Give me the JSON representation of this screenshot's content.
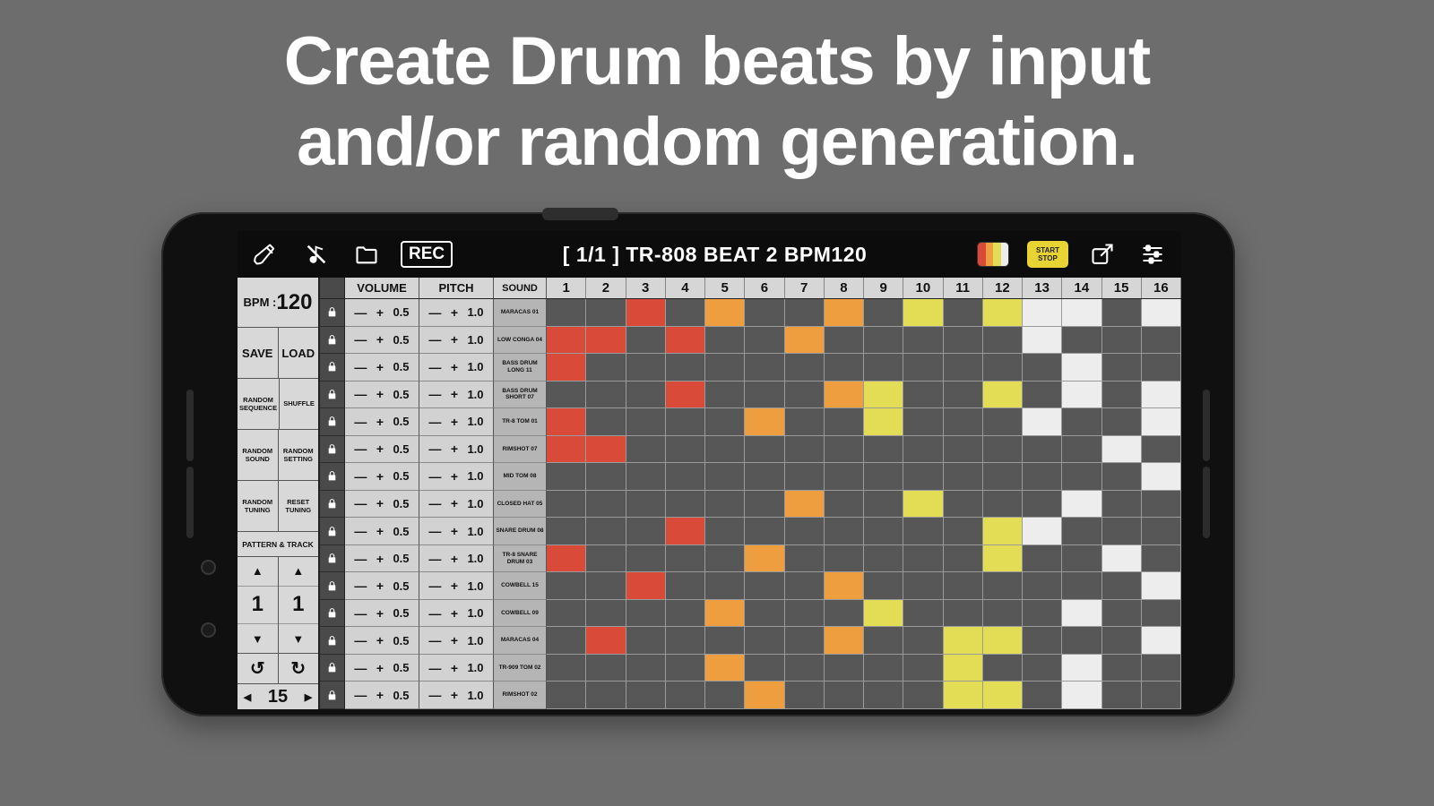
{
  "heading": {
    "line1": "Create Drum beats by input",
    "line2": "and/or random generation."
  },
  "toolbar": {
    "rec_label": "REC",
    "title": "[ 1/1 ] TR-808 BEAT 2 BPM120",
    "start_label": "START",
    "stop_label": "STOP"
  },
  "left_panel": {
    "bpm_label": "BPM :",
    "bpm_value": "120",
    "save": "SAVE",
    "load": "LOAD",
    "random_sequence": "RANDOM SEQUENCE",
    "shuffle": "SHUFFLE",
    "random_sound": "RANDOM SOUND",
    "random_setting": "RANDOM SETTING",
    "random_tuning": "RANDOM TUNING",
    "reset_tuning": "RESET TUNING",
    "pattern_track": "PATTERN & TRACK",
    "pattern_value": "1",
    "track_value": "1",
    "arrow_up": "▲",
    "arrow_down": "▼",
    "undo_icon": "↺",
    "loop_icon": "↻",
    "page_prev": "◀",
    "page_value": "15",
    "page_next": "▶"
  },
  "sequencer": {
    "column_headers": {
      "volume": "VOLUME",
      "pitch": "PITCH",
      "sound": "SOUND"
    },
    "step_numbers": [
      1,
      2,
      3,
      4,
      5,
      6,
      7,
      8,
      9,
      10,
      11,
      12,
      13,
      14,
      15,
      16
    ],
    "minus": "—",
    "plus": "+",
    "colors": {
      "red": "#d94a38",
      "orange": "#ee9d3f",
      "yellow": "#e2dd55",
      "white": "#ededed",
      "empty": "#575757",
      "start_stop_accent": "#e8d334"
    },
    "color_rule": "active steps 1-4 red, 5-8 orange, 9-12 yellow, 13-16 white",
    "rows": [
      {
        "sound": "MARACAS 01",
        "volume": "0.5",
        "pitch": "1.0",
        "active_steps": [
          3,
          5,
          8,
          10,
          12,
          13,
          14,
          16
        ]
      },
      {
        "sound": "LOW CONGA 04",
        "volume": "0.5",
        "pitch": "1.0",
        "active_steps": [
          1,
          2,
          4,
          7,
          13
        ]
      },
      {
        "sound": "BASS DRUM LONG 11",
        "volume": "0.5",
        "pitch": "1.0",
        "active_steps": [
          1,
          14
        ]
      },
      {
        "sound": "BASS DRUM SHORT 07",
        "volume": "0.5",
        "pitch": "1.0",
        "active_steps": [
          4,
          8,
          9,
          12,
          14,
          16
        ]
      },
      {
        "sound": "TR-8 TOM 01",
        "volume": "0.5",
        "pitch": "1.0",
        "active_steps": [
          1,
          6,
          9,
          13,
          16
        ]
      },
      {
        "sound": "RIMSHOT 07",
        "volume": "0.5",
        "pitch": "1.0",
        "active_steps": [
          1,
          2,
          15
        ]
      },
      {
        "sound": "MID TOM 08",
        "volume": "0.5",
        "pitch": "1.0",
        "active_steps": [
          16
        ]
      },
      {
        "sound": "CLOSED HAT 05",
        "volume": "0.5",
        "pitch": "1.0",
        "active_steps": [
          7,
          10,
          14
        ]
      },
      {
        "sound": "SNARE DRUM 08",
        "volume": "0.5",
        "pitch": "1.0",
        "active_steps": [
          4,
          12,
          13
        ]
      },
      {
        "sound": "TR-8 SNARE DRUM 03",
        "volume": "0.5",
        "pitch": "1.0",
        "active_steps": [
          1,
          6,
          12,
          15
        ]
      },
      {
        "sound": "COWBELL 15",
        "volume": "0.5",
        "pitch": "1.0",
        "active_steps": [
          3,
          8,
          16
        ]
      },
      {
        "sound": "COWBELL 09",
        "volume": "0.5",
        "pitch": "1.0",
        "active_steps": [
          5,
          9,
          14
        ]
      },
      {
        "sound": "MARACAS 04",
        "volume": "0.5",
        "pitch": "1.0",
        "active_steps": [
          2,
          8,
          11,
          12,
          16
        ]
      },
      {
        "sound": "TR-909 TOM 02",
        "volume": "0.5",
        "pitch": "1.0",
        "active_steps": [
          5,
          11,
          14
        ]
      },
      {
        "sound": "RIMSHOT 02",
        "volume": "0.5",
        "pitch": "1.0",
        "active_steps": [
          6,
          11,
          12,
          14
        ]
      }
    ]
  }
}
